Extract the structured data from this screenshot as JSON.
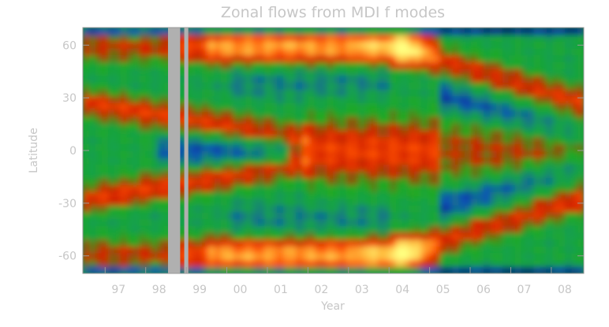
{
  "chart_data": {
    "type": "heatmap",
    "title": "Zonal flows from MDI f modes",
    "xlabel": "Year",
    "ylabel": "Latitude",
    "x_ticks": [
      "97",
      "98",
      "99",
      "00",
      "01",
      "02",
      "03",
      "04",
      "05",
      "06",
      "07",
      "08"
    ],
    "x_tick_years": [
      1997.0,
      1998.0,
      1999.0,
      2000.0,
      2001.0,
      2002.0,
      2003.0,
      2004.0,
      2005.0,
      2006.0,
      2007.0,
      2008.0
    ],
    "y_ticks": [
      "60",
      "30",
      "0",
      "-30",
      "-60"
    ],
    "y_tick_values": [
      60,
      30,
      0,
      -30,
      -60
    ],
    "xlim": [
      1996.45,
      2008.8
    ],
    "ylim": [
      -70,
      70
    ],
    "data_gaps_years": [
      [
        1998.55,
        1998.85
      ],
      [
        1998.95,
        1999.05
      ]
    ],
    "gap_color": "#b0b0b0",
    "colormap": [
      "#000000",
      "#00006e",
      "#1050b8",
      "#14a050",
      "#20aa20",
      "#d02000",
      "#ff5000",
      "#ffc040",
      "#ffff80"
    ],
    "features": [
      {
        "name": "poleward branch N",
        "start_year": 1996.6,
        "start_lat": 60,
        "end_year": 2005.3,
        "end_lat": 60
      },
      {
        "name": "equatorward branch N",
        "start_year": 1996.5,
        "start_lat": 28,
        "end_year": 2001.9,
        "end_lat": 8
      },
      {
        "name": "equatorward branch S",
        "start_year": 1996.5,
        "start_lat": -28,
        "end_year": 2001.9,
        "end_lat": -8
      },
      {
        "name": "new cycle branch N",
        "start_year": 2004.3,
        "start_lat": 58,
        "end_year": 2008.8,
        "end_lat": 28
      },
      {
        "name": "new cycle branch S",
        "start_year": 2004.3,
        "start_lat": -58,
        "end_year": 2008.8,
        "end_lat": -28
      }
    ]
  }
}
